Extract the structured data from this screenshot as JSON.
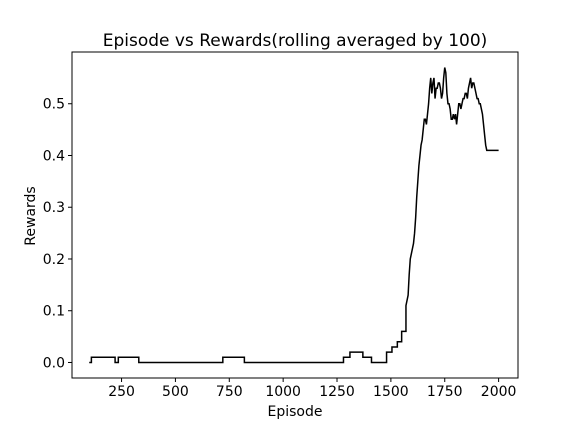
{
  "chart_data": {
    "type": "line",
    "title": "Episode vs Rewards(rolling averaged by 100)",
    "xlabel": "Episode",
    "ylabel": "Rewards",
    "xlim": [
      20,
      2090
    ],
    "ylim": [
      -0.03,
      0.6
    ],
    "xticks": [
      250,
      500,
      750,
      1000,
      1250,
      1500,
      1750,
      2000
    ],
    "yticks": [
      0.0,
      0.1,
      0.2,
      0.3,
      0.4,
      0.5
    ],
    "ytick_labels": [
      "0.0",
      "0.1",
      "0.2",
      "0.3",
      "0.4",
      "0.5"
    ],
    "grid": false,
    "line_color": "#000000",
    "series": [
      {
        "x": [
          100,
          110,
          110,
          220,
          220,
          235,
          235,
          330,
          330,
          720,
          720,
          820,
          820,
          1280,
          1280,
          1310,
          1310,
          1370,
          1370,
          1410,
          1410,
          1480,
          1480,
          1505,
          1505,
          1530,
          1530,
          1550,
          1550,
          1570,
          1570,
          1580,
          1585,
          1590,
          1595,
          1600,
          1605,
          1610,
          1615,
          1620,
          1625,
          1630,
          1635,
          1640,
          1645,
          1650,
          1655,
          1660,
          1665,
          1670,
          1675,
          1680,
          1685,
          1690,
          1695,
          1700,
          1705,
          1710,
          1715,
          1720,
          1725,
          1730,
          1735,
          1740,
          1745,
          1750,
          1755,
          1760,
          1765,
          1770,
          1775,
          1780,
          1785,
          1790,
          1795,
          1800,
          1805,
          1810,
          1815,
          1820,
          1825,
          1830,
          1835,
          1840,
          1845,
          1850,
          1855,
          1860,
          1865,
          1870,
          1875,
          1880,
          1885,
          1890,
          1895,
          1900,
          1905,
          1910,
          1915,
          1920,
          1925,
          1930,
          1935,
          1940,
          1945,
          1950,
          1955,
          1960,
          1965,
          1970,
          1975,
          1980,
          1985,
          1990,
          1995,
          2000
        ],
        "y": [
          0.0,
          0.0,
          0.01,
          0.01,
          0.0,
          0.0,
          0.01,
          0.01,
          0.0,
          0.0,
          0.01,
          0.01,
          0.0,
          0.0,
          0.01,
          0.01,
          0.02,
          0.02,
          0.01,
          0.01,
          0.0,
          0.0,
          0.02,
          0.02,
          0.03,
          0.03,
          0.04,
          0.04,
          0.06,
          0.06,
          0.11,
          0.13,
          0.17,
          0.2,
          0.21,
          0.22,
          0.23,
          0.25,
          0.28,
          0.32,
          0.35,
          0.38,
          0.4,
          0.42,
          0.43,
          0.45,
          0.47,
          0.47,
          0.46,
          0.48,
          0.5,
          0.53,
          0.55,
          0.52,
          0.54,
          0.55,
          0.51,
          0.53,
          0.53,
          0.54,
          0.54,
          0.53,
          0.51,
          0.52,
          0.55,
          0.57,
          0.56,
          0.52,
          0.5,
          0.5,
          0.49,
          0.47,
          0.47,
          0.48,
          0.47,
          0.48,
          0.46,
          0.48,
          0.5,
          0.5,
          0.49,
          0.5,
          0.51,
          0.51,
          0.52,
          0.52,
          0.51,
          0.53,
          0.54,
          0.55,
          0.53,
          0.54,
          0.54,
          0.53,
          0.52,
          0.51,
          0.51,
          0.5,
          0.5,
          0.49,
          0.48,
          0.46,
          0.44,
          0.42,
          0.41,
          0.41,
          0.41,
          0.41,
          0.41,
          0.41,
          0.41,
          0.41,
          0.41,
          0.41,
          0.41,
          0.41
        ]
      }
    ]
  }
}
